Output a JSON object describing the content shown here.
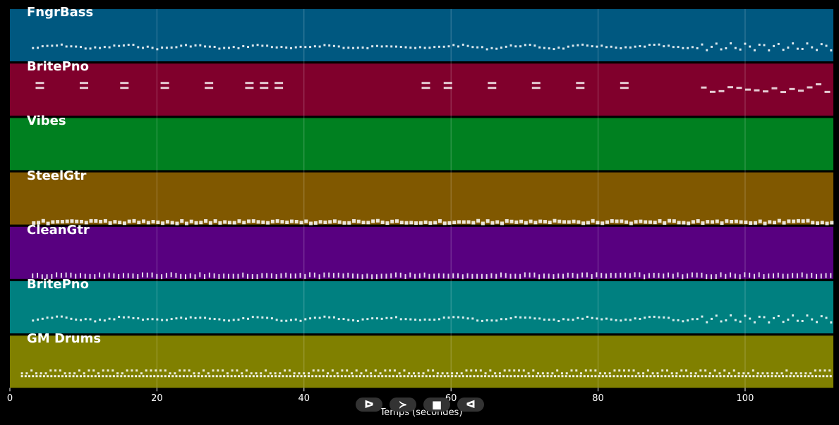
{
  "chart_data": {
    "type": "piano-roll",
    "xlabel": "Temps (secondes)",
    "xlim": [
      0,
      112
    ],
    "xticks": [
      0,
      20,
      40,
      60,
      80,
      100
    ],
    "grid": true,
    "tracks": [
      {
        "name": "FngrBass",
        "color": "#005880",
        "style": "bass"
      },
      {
        "name": "BritePno",
        "color": "#80002c",
        "style": "chords"
      },
      {
        "name": "Vibes",
        "color": "#008020",
        "style": "melody"
      },
      {
        "name": "SteelGtr",
        "color": "#805800",
        "style": "strum"
      },
      {
        "name": "CleanGtr",
        "color": "#580080",
        "style": "arp"
      },
      {
        "name": "BritePno",
        "color": "#008080",
        "style": "bass"
      },
      {
        "name": "GM Drums",
        "color": "#808000",
        "style": "drums"
      }
    ]
  },
  "controls": {
    "play": "ᐅ",
    "forward": "≻",
    "stop": "■",
    "back": "ᐊ"
  }
}
